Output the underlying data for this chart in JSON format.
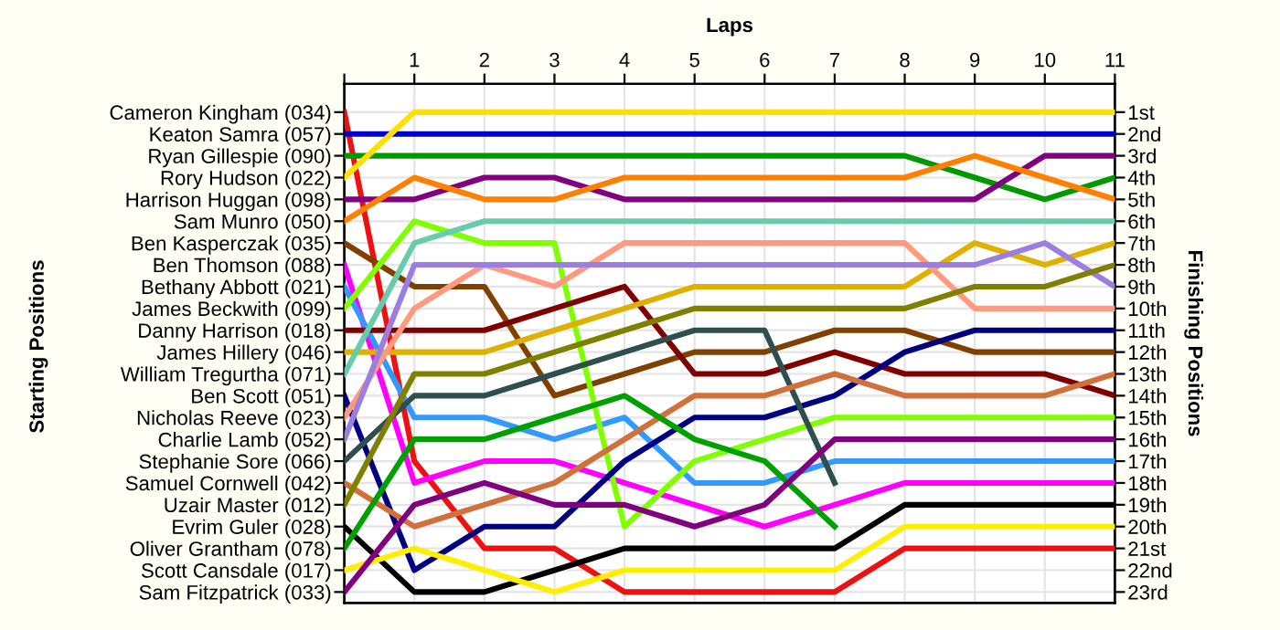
{
  "chart_data": {
    "type": "line",
    "xlabel": "Laps",
    "y2label": "Finishing Positions",
    "x": [
      0,
      1,
      2,
      3,
      4,
      5,
      6,
      7,
      8,
      9,
      10,
      11
    ],
    "xlim": [
      0,
      11
    ],
    "xticks": [
      {
        "value": 0,
        "label": null
      },
      1,
      2,
      3,
      4,
      5,
      6,
      7,
      8,
      9,
      10,
      11
    ],
    "annotations": [
      "Cameron Kingham (034)",
      "Keaton Samra (057)",
      "Ryan Gillespie (090)",
      "Rory Hudson (022)",
      "Harrison Huggan (098)",
      "Sam Munro (050)",
      "Ben Kasperczak (035)",
      "Ben Thomson (088)",
      "Bethany Abbott (021)",
      "James Beckwith (099)",
      "Danny Harrison (018)",
      "James Hillery (046)",
      "William Tregurtha (071)",
      "Ben Scott (051)",
      "Nicholas Reeve (023)",
      "Charlie Lamb (052)",
      "Stephanie Sore (066)",
      "Samuel Cornwell (042)",
      "Uzair Master (012)",
      "Evrim Guler (028)",
      "Oliver Grantham (078)",
      "Scott Cansdale (017)",
      "Sam Fitzpatrick (033)",
      "Starting Positions"
    ],
    "y2lim": [
      23.5,
      -0.3
    ],
    "y2ticks": [
      {
        "value": 1,
        "label": "1st"
      },
      {
        "value": 2,
        "label": "2nd"
      },
      {
        "value": 3,
        "label": "3rd"
      },
      {
        "value": 4,
        "label": "4th"
      },
      {
        "value": 5,
        "label": "5th"
      },
      {
        "value": 6,
        "label": "6th"
      },
      {
        "value": 7,
        "label": "7th"
      },
      {
        "value": 8,
        "label": "8th"
      },
      {
        "value": 9,
        "label": "9th"
      },
      {
        "value": 10,
        "label": "10th"
      },
      {
        "value": 11,
        "label": "11th"
      },
      {
        "value": 12,
        "label": "12th"
      },
      {
        "value": 13,
        "label": "13th"
      },
      {
        "value": 14,
        "label": "14th"
      },
      {
        "value": 15,
        "label": "15th"
      },
      {
        "value": 16,
        "label": "16th"
      },
      {
        "value": 17,
        "label": "17th"
      },
      {
        "value": 18,
        "label": "18th"
      },
      {
        "value": 19,
        "label": "19th"
      },
      {
        "value": 20,
        "label": "20th"
      },
      {
        "value": 21,
        "label": "21st"
      },
      {
        "value": 22,
        "label": "22nd"
      },
      {
        "value": 23,
        "label": "23rd"
      }
    ],
    "grid": true,
    "legend": false,
    "marker": "none",
    "line_style": "solid",
    "series": [
      {
        "axis": "y2",
        "color": "#ee1111",
        "values": [
          1,
          17,
          21,
          21,
          23,
          23,
          23,
          23,
          21,
          21,
          21,
          21
        ]
      },
      {
        "axis": "y2",
        "color": "#0000cc",
        "values": [
          2,
          2,
          2,
          2,
          2,
          2,
          2,
          2,
          2,
          2,
          2,
          2
        ]
      },
      {
        "axis": "y2",
        "color": "#009900",
        "values": [
          3,
          3,
          3,
          3,
          3,
          3,
          3,
          3,
          3,
          4,
          5,
          4
        ]
      },
      {
        "axis": "y2",
        "color": "#ffe000",
        "values": [
          4,
          1,
          1,
          1,
          1,
          1,
          1,
          1,
          1,
          1,
          1,
          1
        ]
      },
      {
        "axis": "y2",
        "color": "#800080",
        "values": [
          5,
          5,
          4,
          4,
          5,
          5,
          5,
          5,
          5,
          5,
          3,
          3
        ]
      },
      {
        "axis": "y2",
        "color": "#ff8000",
        "values": [
          6,
          4,
          5,
          5,
          4,
          4,
          4,
          4,
          4,
          3,
          4,
          5
        ]
      },
      {
        "axis": "y2",
        "color": "#804000",
        "values": [
          7,
          9,
          9,
          14,
          13,
          12,
          12,
          11,
          11,
          12,
          12,
          12
        ]
      },
      {
        "axis": "y2",
        "color": "#ff00ff",
        "values": [
          8,
          18,
          17,
          17,
          18,
          19,
          20,
          19,
          18,
          18,
          18,
          18
        ]
      },
      {
        "axis": "y2",
        "color": "#3399ff",
        "values": [
          9,
          15,
          15,
          16,
          15,
          18,
          18,
          17,
          17,
          17,
          17,
          17
        ]
      },
      {
        "axis": "y2",
        "color": "#80ff00",
        "values": [
          10,
          6,
          7,
          7,
          20,
          17,
          16,
          15,
          15,
          15,
          15,
          15
        ]
      },
      {
        "axis": "y2",
        "color": "#800000",
        "values": [
          11,
          11,
          11,
          10,
          9,
          13,
          13,
          12,
          13,
          13,
          13,
          14
        ]
      },
      {
        "axis": "y2",
        "color": "#e0b000",
        "values": [
          12,
          12,
          12,
          11,
          10,
          9,
          9,
          9,
          9,
          7,
          8,
          7
        ]
      },
      {
        "axis": "y2",
        "color": "#66ccaa",
        "values": [
          13,
          7,
          6,
          6,
          6,
          6,
          6,
          6,
          6,
          6,
          6,
          6
        ]
      },
      {
        "axis": "y2",
        "color": "#000080",
        "values": [
          14,
          22,
          20,
          20,
          17,
          15,
          15,
          14,
          12,
          11,
          11,
          11
        ]
      },
      {
        "axis": "y2",
        "color": "#ff9980",
        "values": [
          15,
          10,
          8,
          9,
          7,
          7,
          7,
          7,
          7,
          10,
          10,
          10
        ]
      },
      {
        "axis": "y2",
        "color": "#9b7fe0",
        "values": [
          16,
          8,
          8,
          8,
          8,
          8,
          8,
          8,
          8,
          8,
          7,
          9
        ]
      },
      {
        "axis": "y2",
        "color": "#2f4f4f",
        "values": [
          17,
          14,
          14,
          13,
          12,
          11,
          11,
          18,
          null,
          null,
          null,
          null
        ]
      },
      {
        "axis": "y2",
        "color": "#d0703a",
        "values": [
          18,
          20,
          19,
          18,
          16,
          14,
          14,
          13,
          14,
          14,
          14,
          13
        ]
      },
      {
        "axis": "y2",
        "color": "#808000",
        "values": [
          19,
          13,
          13,
          12,
          11,
          10,
          10,
          10,
          10,
          9,
          9,
          8
        ]
      },
      {
        "axis": "y2",
        "color": "#000000",
        "values": [
          20,
          23,
          23,
          22,
          21,
          21,
          21,
          21,
          19,
          19,
          19,
          19
        ]
      },
      {
        "axis": "y2",
        "color": "#00a000",
        "values": [
          21,
          16,
          16,
          15,
          14,
          16,
          17,
          20,
          null,
          null,
          null,
          null
        ]
      },
      {
        "axis": "y2",
        "color": "#ffee00",
        "values": [
          22,
          21,
          22,
          23,
          22,
          22,
          22,
          22,
          20,
          20,
          20,
          20
        ]
      },
      {
        "axis": "y2",
        "color": "#800080",
        "values": [
          23,
          19,
          18,
          19,
          19,
          20,
          19,
          16,
          16,
          16,
          16,
          16
        ]
      }
    ]
  }
}
